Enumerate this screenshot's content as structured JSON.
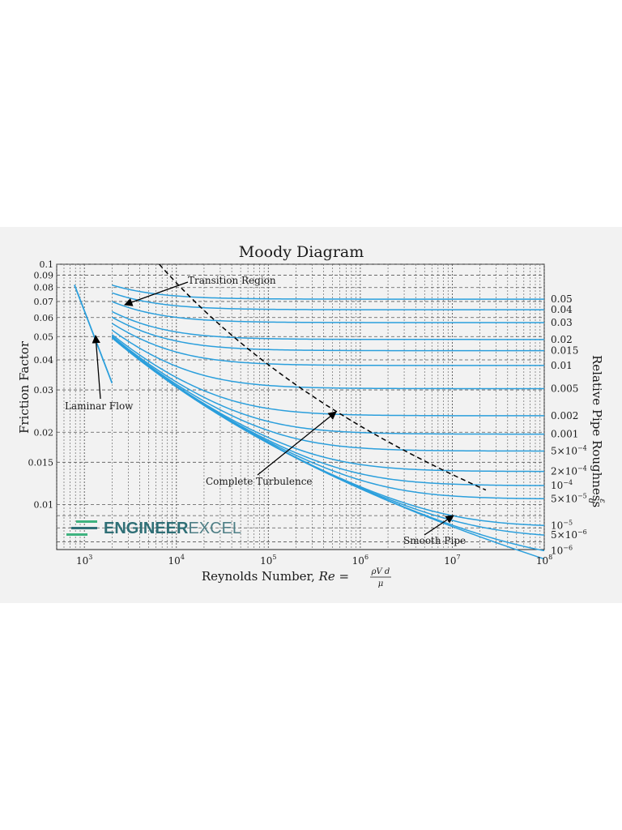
{
  "chart_data": {
    "type": "line",
    "title": "Moody Diagram",
    "xlabel": "Reynolds Number, Re = ρVd/μ",
    "xlabel_text": "Reynolds Number, ",
    "xlabel_math_lhs": "Re =",
    "xlabel_math_num": "ρV d",
    "xlabel_math_den": "μ",
    "ylabel": "Friction Factor",
    "ylabel_right": "Relative Pipe Roughness",
    "ylabel_right_frac_num": "ε",
    "ylabel_right_frac_den": "d",
    "x_scale": "log",
    "y_scale": "log",
    "xlim": [
      500,
      100000000
    ],
    "ylim": [
      0.0065,
      0.1
    ],
    "grid": true,
    "x_ticks": [
      {
        "value": 1000,
        "base": "10",
        "exp": "3"
      },
      {
        "value": 10000,
        "base": "10",
        "exp": "4"
      },
      {
        "value": 100000,
        "base": "10",
        "exp": "5"
      },
      {
        "value": 1000000,
        "base": "10",
        "exp": "6"
      },
      {
        "value": 10000000,
        "base": "10",
        "exp": "7"
      },
      {
        "value": 100000000,
        "base": "10",
        "exp": "8"
      }
    ],
    "y_ticks": [
      {
        "value": 0.1,
        "label": "0.1"
      },
      {
        "value": 0.09,
        "label": "0.09"
      },
      {
        "value": 0.08,
        "label": "0.08"
      },
      {
        "value": 0.07,
        "label": "0.07"
      },
      {
        "value": 0.06,
        "label": "0.06"
      },
      {
        "value": 0.05,
        "label": "0.05"
      },
      {
        "value": 0.04,
        "label": "0.04"
      },
      {
        "value": 0.03,
        "label": "0.03"
      },
      {
        "value": 0.02,
        "label": "0.02"
      },
      {
        "value": 0.015,
        "label": "0.015"
      },
      {
        "value": 0.01,
        "label": "0.01"
      }
    ],
    "roughness_curves": [
      {
        "value": 0.05,
        "label": "0.05"
      },
      {
        "value": 0.04,
        "label": "0.04"
      },
      {
        "value": 0.03,
        "label": "0.03"
      },
      {
        "value": 0.02,
        "label": "0.02"
      },
      {
        "value": 0.015,
        "label": "0.015"
      },
      {
        "value": 0.01,
        "label": "0.01"
      },
      {
        "value": 0.005,
        "label": "0.005"
      },
      {
        "value": 0.002,
        "label": "0.002"
      },
      {
        "value": 0.001,
        "label": "0.001"
      },
      {
        "value": 0.0005,
        "label": "5×10",
        "exp": "−4"
      },
      {
        "value": 0.0002,
        "label": "2×10",
        "exp": "−4"
      },
      {
        "value": 0.0001,
        "label": "10",
        "exp": "−4"
      },
      {
        "value": 5e-05,
        "label": "5×10",
        "exp": "−5"
      },
      {
        "value": 1e-05,
        "label": "10",
        "exp": "−5"
      },
      {
        "value": 5e-06,
        "label": "5×10",
        "exp": "−6"
      },
      {
        "value": 1e-06,
        "label": "10",
        "exp": "−6"
      },
      {
        "value": 0,
        "label": ""
      }
    ],
    "laminar_flow": {
      "x": [
        780,
        2000
      ],
      "f_formula": "64/Re"
    },
    "turbulent_start_re": 2000,
    "complete_turbulence_line": {
      "re_start": 2500,
      "re_end": 100000000
    },
    "annotations": [
      {
        "id": "transition",
        "text": "Transition Region"
      },
      {
        "id": "laminar",
        "text": "Laminar Flow"
      },
      {
        "id": "complete",
        "text": "Complete Turbulence"
      },
      {
        "id": "smooth",
        "text": "Smooth Pipe"
      }
    ],
    "colors": {
      "curve": "#2b9fdc",
      "dashed": "#000000",
      "grid": "#555555"
    }
  },
  "logo": {
    "text_bold": "ENGINEER",
    "text_light": "EXCEL",
    "color_bold": "#2f6f76",
    "color_light": "#4f7f86",
    "stripe_color_1": "#3fb37f",
    "stripe_color_2": "#2f6f76"
  }
}
